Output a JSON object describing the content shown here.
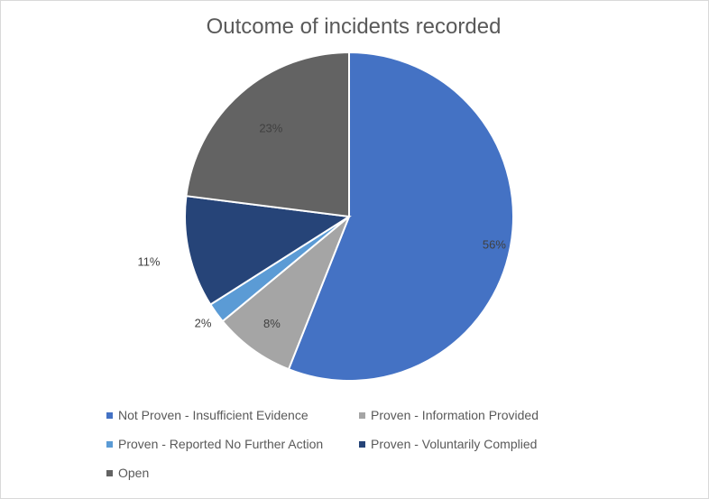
{
  "chart_data": {
    "type": "pie",
    "title": "Outcome of incidents recorded",
    "categories": [
      "Not Proven - Insufficient Evidence",
      "Proven - Information Provided",
      "Proven - Reported No Further Action",
      "Proven - Voluntarily Complied",
      "Open"
    ],
    "values": [
      56,
      8,
      2,
      11,
      23
    ],
    "data_labels": [
      "56%",
      "8%",
      "2%",
      "11%",
      "23%"
    ],
    "colors": [
      "#4472c4",
      "#a5a5a5",
      "#5b9bd5",
      "#264478",
      "#636363"
    ],
    "legend_position": "bottom",
    "start_angle": "12 o'clock",
    "direction": "clockwise"
  }
}
